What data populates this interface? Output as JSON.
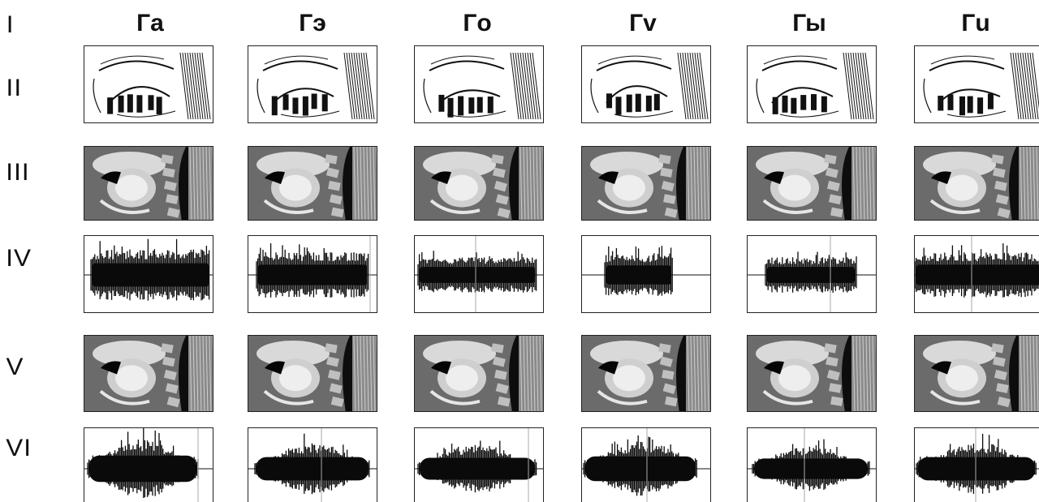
{
  "row_labels": [
    "I",
    "II",
    "III",
    "IV",
    "V",
    "VI"
  ],
  "columns": [
    "Гa",
    "Гэ",
    "Гo",
    "Гv",
    "Гы",
    "Гu"
  ]
}
